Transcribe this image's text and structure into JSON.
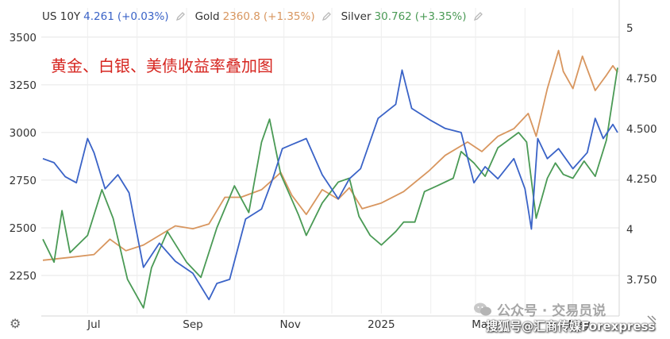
{
  "legend": [
    {
      "name": "US 10Y",
      "value": "4.261",
      "change": "(+0.03%)",
      "color": "#3a63c7",
      "icon": "pencil-icon"
    },
    {
      "name": "Gold",
      "value": "2360.8",
      "change": "(+1.35%)",
      "color": "#d8965f",
      "icon": "pencil-icon"
    },
    {
      "name": "Silver",
      "value": "30.762",
      "change": "(+3.35%)",
      "color": "#4a9a55",
      "icon": "pencil-icon"
    }
  ],
  "chart_data": {
    "type": "line",
    "title": "黄金、白银、美债收益率叠加图",
    "title_color": "#d6251f",
    "grid": true,
    "left_axis": {
      "ticks": [
        "3500",
        "3250",
        "3000",
        "2750",
        "2500",
        "2250"
      ],
      "range": [
        2050,
        3570
      ]
    },
    "right_axis": {
      "ticks": [
        "5",
        "4.750",
        "4.500",
        "4.250",
        "4",
        "3.750"
      ],
      "range": [
        3.58,
        5.02
      ]
    },
    "x_axis": {
      "ticks": [
        "Jul",
        "Sep",
        "Nov",
        "2025",
        "Mar",
        "May"
      ],
      "range": [
        "2024-06-02",
        "2025-05-30"
      ]
    },
    "series": [
      {
        "name": "Gold",
        "axis": "left",
        "color": "#d8965f",
        "points": [
          [
            "2024-06-03",
            2330
          ],
          [
            "2024-06-20",
            2345
          ],
          [
            "2024-07-05",
            2360
          ],
          [
            "2024-07-15",
            2440
          ],
          [
            "2024-07-25",
            2380
          ],
          [
            "2024-08-05",
            2410
          ],
          [
            "2024-08-15",
            2460
          ],
          [
            "2024-08-25",
            2510
          ],
          [
            "2024-09-05",
            2495
          ],
          [
            "2024-09-15",
            2520
          ],
          [
            "2024-09-25",
            2660
          ],
          [
            "2024-10-05",
            2660
          ],
          [
            "2024-10-18",
            2700
          ],
          [
            "2024-10-30",
            2790
          ],
          [
            "2024-11-06",
            2670
          ],
          [
            "2024-11-15",
            2570
          ],
          [
            "2024-11-25",
            2700
          ],
          [
            "2024-12-05",
            2650
          ],
          [
            "2024-12-12",
            2710
          ],
          [
            "2024-12-20",
            2600
          ],
          [
            "2025-01-01",
            2630
          ],
          [
            "2025-01-15",
            2690
          ],
          [
            "2025-01-31",
            2800
          ],
          [
            "2025-02-10",
            2880
          ],
          [
            "2025-02-24",
            2950
          ],
          [
            "2025-03-05",
            2900
          ],
          [
            "2025-03-15",
            2980
          ],
          [
            "2025-03-25",
            3020
          ],
          [
            "2025-04-03",
            3100
          ],
          [
            "2025-04-08",
            2980
          ],
          [
            "2025-04-15",
            3230
          ],
          [
            "2025-04-22",
            3430
          ],
          [
            "2025-04-25",
            3320
          ],
          [
            "2025-05-01",
            3230
          ],
          [
            "2025-05-07",
            3400
          ],
          [
            "2025-05-15",
            3220
          ],
          [
            "2025-05-22",
            3300
          ],
          [
            "2025-05-26",
            3350
          ],
          [
            "2025-05-29",
            3315
          ]
        ]
      },
      {
        "name": "Silver",
        "axis": "left",
        "color": "#4a9a55",
        "points": [
          [
            "2024-06-03",
            2440
          ],
          [
            "2024-06-10",
            2320
          ],
          [
            "2024-06-15",
            2590
          ],
          [
            "2024-06-20",
            2370
          ],
          [
            "2024-07-01",
            2460
          ],
          [
            "2024-07-10",
            2700
          ],
          [
            "2024-07-17",
            2550
          ],
          [
            "2024-07-26",
            2230
          ],
          [
            "2024-08-05",
            2080
          ],
          [
            "2024-08-10",
            2290
          ],
          [
            "2024-08-20",
            2480
          ],
          [
            "2024-09-01",
            2320
          ],
          [
            "2024-09-10",
            2240
          ],
          [
            "2024-09-20",
            2500
          ],
          [
            "2024-10-01",
            2720
          ],
          [
            "2024-10-10",
            2580
          ],
          [
            "2024-10-18",
            2950
          ],
          [
            "2024-10-23",
            3070
          ],
          [
            "2024-10-30",
            2780
          ],
          [
            "2024-11-10",
            2570
          ],
          [
            "2024-11-15",
            2460
          ],
          [
            "2024-11-25",
            2630
          ],
          [
            "2024-12-05",
            2740
          ],
          [
            "2024-12-12",
            2760
          ],
          [
            "2024-12-18",
            2560
          ],
          [
            "2024-12-25",
            2460
          ],
          [
            "2025-01-01",
            2410
          ],
          [
            "2025-01-10",
            2480
          ],
          [
            "2025-01-15",
            2530
          ],
          [
            "2025-01-22",
            2530
          ],
          [
            "2025-01-28",
            2690
          ],
          [
            "2025-02-05",
            2720
          ],
          [
            "2025-02-15",
            2760
          ],
          [
            "2025-02-20",
            2900
          ],
          [
            "2025-02-28",
            2840
          ],
          [
            "2025-03-07",
            2770
          ],
          [
            "2025-03-15",
            2920
          ],
          [
            "2025-03-28",
            3000
          ],
          [
            "2025-04-02",
            2950
          ],
          [
            "2025-04-08",
            2550
          ],
          [
            "2025-04-15",
            2760
          ],
          [
            "2025-04-20",
            2840
          ],
          [
            "2025-04-25",
            2780
          ],
          [
            "2025-05-01",
            2760
          ],
          [
            "2025-05-08",
            2850
          ],
          [
            "2025-05-15",
            2770
          ],
          [
            "2025-05-22",
            2960
          ],
          [
            "2025-05-29",
            3340
          ]
        ]
      },
      {
        "name": "US 10Y",
        "axis": "right",
        "color": "#3a63c7",
        "points": [
          [
            "2024-06-03",
            4.35
          ],
          [
            "2024-06-10",
            4.33
          ],
          [
            "2024-06-17",
            4.26
          ],
          [
            "2024-06-24",
            4.23
          ],
          [
            "2024-07-01",
            4.45
          ],
          [
            "2024-07-05",
            4.38
          ],
          [
            "2024-07-12",
            4.2
          ],
          [
            "2024-07-20",
            4.27
          ],
          [
            "2024-07-27",
            4.18
          ],
          [
            "2024-08-05",
            3.81
          ],
          [
            "2024-08-15",
            3.93
          ],
          [
            "2024-08-25",
            3.84
          ],
          [
            "2024-09-05",
            3.78
          ],
          [
            "2024-09-15",
            3.65
          ],
          [
            "2024-09-20",
            3.73
          ],
          [
            "2024-09-28",
            3.75
          ],
          [
            "2024-10-08",
            4.05
          ],
          [
            "2024-10-18",
            4.1
          ],
          [
            "2024-10-25",
            4.25
          ],
          [
            "2024-10-31",
            4.4
          ],
          [
            "2024-11-06",
            4.42
          ],
          [
            "2024-11-15",
            4.45
          ],
          [
            "2024-11-25",
            4.27
          ],
          [
            "2024-12-05",
            4.15
          ],
          [
            "2024-12-12",
            4.25
          ],
          [
            "2024-12-19",
            4.3
          ],
          [
            "2024-12-30",
            4.55
          ],
          [
            "2025-01-10",
            4.62
          ],
          [
            "2025-01-14",
            4.79
          ],
          [
            "2025-01-20",
            4.6
          ],
          [
            "2025-02-01",
            4.54
          ],
          [
            "2025-02-10",
            4.5
          ],
          [
            "2025-02-20",
            4.48
          ],
          [
            "2025-02-28",
            4.23
          ],
          [
            "2025-03-07",
            4.31
          ],
          [
            "2025-03-15",
            4.25
          ],
          [
            "2025-03-25",
            4.35
          ],
          [
            "2025-04-01",
            4.2
          ],
          [
            "2025-04-05",
            4.0
          ],
          [
            "2025-04-09",
            4.45
          ],
          [
            "2025-04-15",
            4.35
          ],
          [
            "2025-04-22",
            4.4
          ],
          [
            "2025-05-01",
            4.3
          ],
          [
            "2025-05-10",
            4.38
          ],
          [
            "2025-05-15",
            4.55
          ],
          [
            "2025-05-20",
            4.45
          ],
          [
            "2025-05-26",
            4.52
          ],
          [
            "2025-05-29",
            4.48
          ]
        ]
      }
    ]
  },
  "chrome": {
    "settings_icon": "gear-icon",
    "settings_glyph": "⚙",
    "resize_icon": "resize-icon",
    "wechat_icon": "wechat-icon"
  },
  "watermark": {
    "account": "公众号 · 交易员说",
    "source": "搜狐号@汇商传媒Forexpress"
  }
}
